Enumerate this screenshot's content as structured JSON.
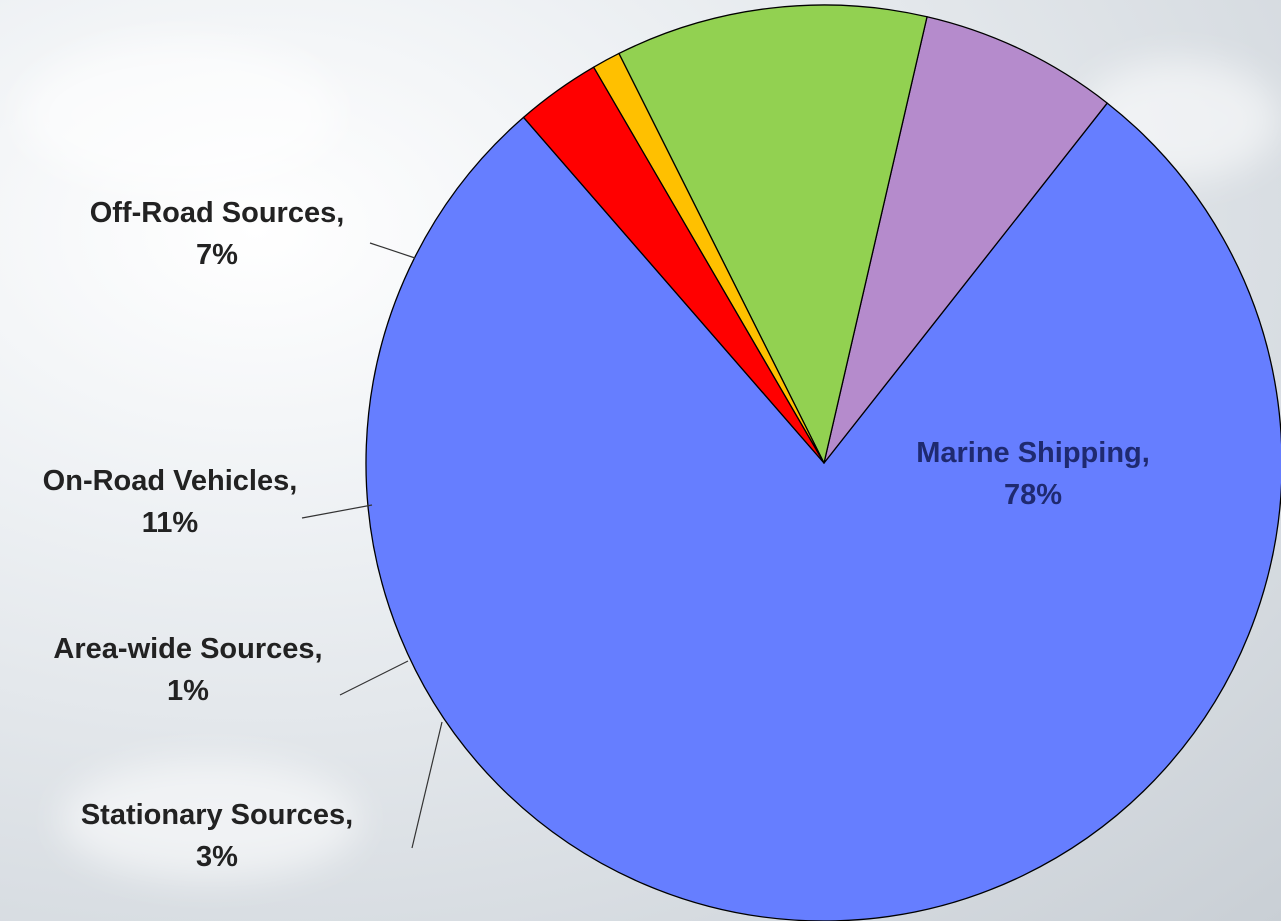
{
  "chart_data": {
    "type": "pie",
    "start_angle_deg": -131,
    "direction": "counterclockwise",
    "legend": "none",
    "slices": [
      {
        "name": "Marine Shipping",
        "label": "Marine Shipping,",
        "value_label": "78%",
        "value": 78,
        "color": "#667eff"
      },
      {
        "name": "Off-Road Sources",
        "label": "Off-Road Sources,",
        "value_label": "7%",
        "value": 7,
        "color": "#b58bcc"
      },
      {
        "name": "On-Road Vehicles",
        "label": "On-Road Vehicles,",
        "value_label": "11%",
        "value": 11,
        "color": "#92d151"
      },
      {
        "name": "Area-wide Sources",
        "label": "Area-wide Sources,",
        "value_label": "1%",
        "value": 1,
        "color": "#ffc000"
      },
      {
        "name": "Stationary Sources",
        "label": "Stationary Sources,",
        "value_label": "3%",
        "value": 3,
        "color": "#ff0000"
      }
    ]
  }
}
